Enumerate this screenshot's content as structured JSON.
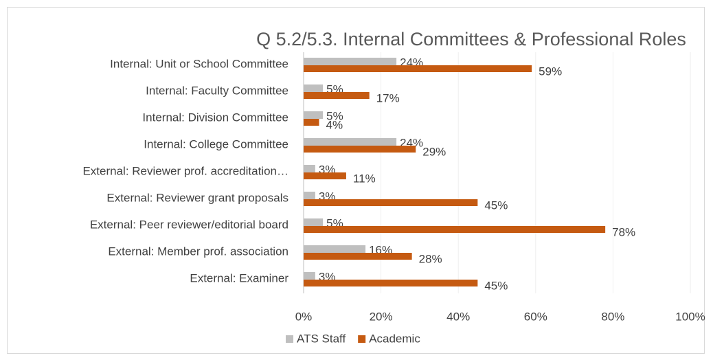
{
  "chart_data": {
    "type": "bar",
    "orientation": "horizontal",
    "title": "Q 5.2/5.3. Internal Committees & Professional Roles",
    "categories": [
      "Internal: Unit or School Committee",
      "Internal: Faculty Committee",
      "Internal: Division Committee",
      "Internal: College Committee",
      "External: Reviewer prof. accreditation…",
      "External: Reviewer grant proposals",
      "External: Peer reviewer/editorial board",
      "External: Member prof. association",
      "External: Examiner"
    ],
    "series": [
      {
        "name": "ATS Staff",
        "color": "#bfbfbf",
        "values": [
          24,
          5,
          5,
          24,
          3,
          3,
          5,
          16,
          3
        ],
        "value_labels": [
          "24%",
          "5%",
          "5%",
          "24%",
          "3%",
          "3%",
          "5%",
          "16%",
          "3%"
        ]
      },
      {
        "name": "Academic",
        "color": "#c55a11",
        "values": [
          59,
          17,
          4,
          29,
          11,
          45,
          78,
          28,
          45
        ],
        "value_labels": [
          "59%",
          "17%",
          "4%",
          "29%",
          "11%",
          "45%",
          "78%",
          "28%",
          "45%"
        ]
      }
    ],
    "xlim": [
      0,
      100
    ],
    "xticks": [
      {
        "value": 0,
        "label": "0%"
      },
      {
        "value": 20,
        "label": "20%"
      },
      {
        "value": 40,
        "label": "40%"
      },
      {
        "value": 60,
        "label": "60%"
      },
      {
        "value": 80,
        "label": "80%"
      },
      {
        "value": 100,
        "label": "100%"
      }
    ],
    "grid": true,
    "legend": "bottom"
  }
}
